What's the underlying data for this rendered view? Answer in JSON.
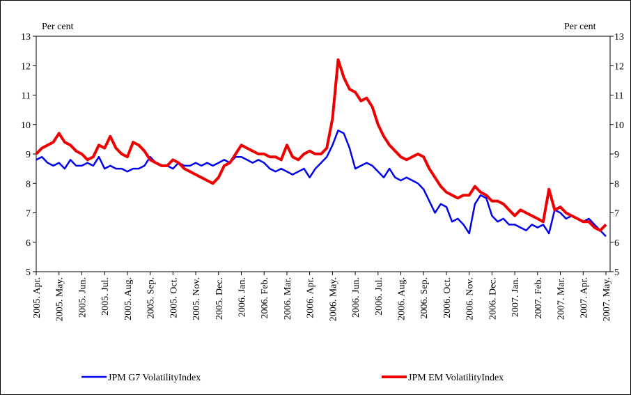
{
  "chart_data": {
    "type": "line",
    "y_label": "Per cent",
    "y2_label": "Per cent",
    "ylim": [
      5,
      13
    ],
    "yticks": [
      5,
      6,
      7,
      8,
      9,
      10,
      11,
      12,
      13
    ],
    "y2lim": [
      5,
      13
    ],
    "y2ticks": [
      5,
      6,
      7,
      8,
      9,
      10,
      11,
      12,
      13
    ],
    "legend": "bottom",
    "grid": false,
    "categories": [
      "2005. Apr.",
      null,
      null,
      null,
      "2005. May.",
      null,
      null,
      null,
      "2005. Jun.",
      null,
      null,
      null,
      "2005. Jul.",
      null,
      null,
      null,
      "2005. Aug.",
      null,
      null,
      null,
      "2005. Sep.",
      null,
      null,
      null,
      "2005. Oct.",
      null,
      null,
      null,
      "2005. Nov.",
      null,
      null,
      null,
      "2005. Dec.",
      null,
      null,
      null,
      "2006. Jan.",
      null,
      null,
      null,
      "2006. Feb.",
      null,
      null,
      null,
      "2006. Mar.",
      null,
      null,
      null,
      "2006. Apr.",
      null,
      null,
      null,
      "2006. May.",
      null,
      null,
      null,
      "2006. Jun.",
      null,
      null,
      null,
      "2006. Jul.",
      null,
      null,
      null,
      "2006. Aug.",
      null,
      null,
      null,
      "2006. Sep.",
      null,
      null,
      null,
      "2006. Oct.",
      null,
      null,
      null,
      "2006. Nov.",
      null,
      null,
      null,
      "2006. Dec.",
      null,
      null,
      null,
      "2007. Jan.",
      null,
      null,
      null,
      "2007. Feb.",
      null,
      null,
      null,
      "2007. Mar.",
      null,
      null,
      null,
      "2007. Apr.",
      null,
      null,
      null,
      "2007. May."
    ],
    "series": [
      {
        "name": "JPM G7 VolatilityIndex",
        "color": "#0000ee",
        "width": 2.5,
        "values": [
          8.8,
          8.9,
          8.7,
          8.6,
          8.7,
          8.5,
          8.8,
          8.6,
          8.6,
          8.7,
          8.6,
          8.9,
          8.5,
          8.6,
          8.5,
          8.5,
          8.4,
          8.5,
          8.5,
          8.6,
          8.9,
          8.7,
          8.6,
          8.6,
          8.5,
          8.7,
          8.6,
          8.6,
          8.7,
          8.6,
          8.7,
          8.6,
          8.7,
          8.8,
          8.7,
          8.9,
          8.9,
          8.8,
          8.7,
          8.8,
          8.7,
          8.5,
          8.4,
          8.5,
          8.4,
          8.3,
          8.4,
          8.5,
          8.2,
          8.5,
          8.7,
          8.9,
          9.3,
          9.8,
          9.7,
          9.2,
          8.5,
          8.6,
          8.7,
          8.6,
          8.4,
          8.2,
          8.5,
          8.2,
          8.1,
          8.2,
          8.1,
          8.0,
          7.8,
          7.4,
          7.0,
          7.3,
          7.2,
          6.7,
          6.8,
          6.6,
          6.3,
          7.3,
          7.6,
          7.5,
          6.9,
          6.7,
          6.8,
          6.6,
          6.6,
          6.5,
          6.4,
          6.6,
          6.5,
          6.6,
          6.3,
          7.1,
          7.0,
          6.8,
          6.9,
          6.8,
          6.7,
          6.8,
          6.6,
          6.4,
          6.2
        ]
      },
      {
        "name": "JPM EM VolatilityIndex",
        "color": "#ee0000",
        "width": 4,
        "values": [
          9.0,
          9.2,
          9.3,
          9.4,
          9.7,
          9.4,
          9.3,
          9.1,
          9.0,
          8.8,
          8.9,
          9.3,
          9.2,
          9.6,
          9.2,
          9.0,
          8.9,
          9.4,
          9.3,
          9.1,
          8.8,
          8.7,
          8.6,
          8.6,
          8.8,
          8.7,
          8.5,
          8.4,
          8.3,
          8.2,
          8.1,
          8.0,
          8.2,
          8.6,
          8.7,
          9.0,
          9.3,
          9.2,
          9.1,
          9.0,
          9.0,
          8.9,
          8.9,
          8.8,
          9.3,
          8.9,
          8.8,
          9.0,
          9.1,
          9.0,
          9.0,
          9.2,
          10.2,
          12.2,
          11.6,
          11.2,
          11.1,
          10.8,
          10.9,
          10.6,
          10.0,
          9.6,
          9.3,
          9.1,
          8.9,
          8.8,
          8.9,
          9.0,
          8.9,
          8.5,
          8.2,
          7.9,
          7.7,
          7.6,
          7.5,
          7.6,
          7.6,
          7.9,
          7.7,
          7.6,
          7.4,
          7.4,
          7.3,
          7.1,
          6.9,
          7.1,
          7.0,
          6.9,
          6.8,
          6.7,
          7.8,
          7.1,
          7.2,
          7.0,
          6.9,
          6.8,
          6.7,
          6.7,
          6.5,
          6.4,
          6.6
        ]
      }
    ]
  }
}
